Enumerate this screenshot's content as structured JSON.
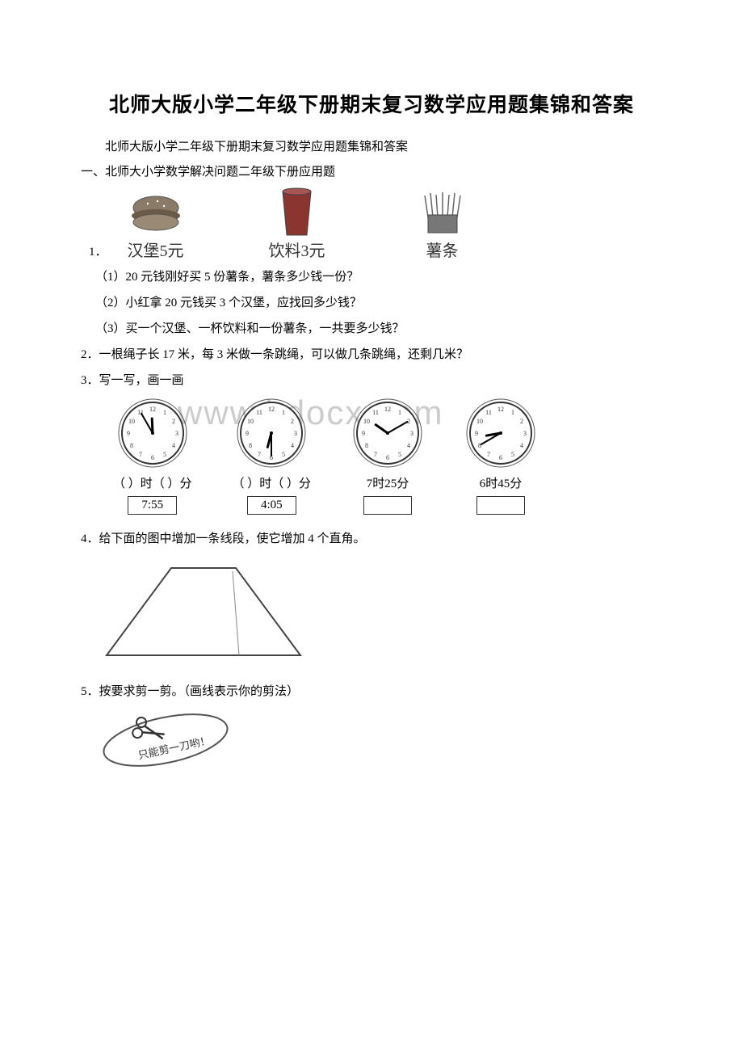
{
  "title": "北师大版小学二年级下册期末复习数学应用题集锦和答案",
  "subtitle": "北师大版小学二年级下册期末复习数学应用题集锦和答案",
  "section": "一、北师大小学数学解决问题二年级下册应用题",
  "q1": {
    "num": "1．",
    "items": [
      {
        "label": "汉堡5元"
      },
      {
        "label": "饮料3元"
      },
      {
        "label": "薯条"
      }
    ],
    "sub": [
      "（1）20 元钱刚好买 5 份薯条，薯条多少钱一份？",
      "（2）小红拿 20 元钱买 3 个汉堡，应找回多少钱？",
      "（3）买一个汉堡、一杯饮料和一份薯条，一共要多少钱？"
    ]
  },
  "q2": "2．一根绳子长 17 米，每 3 米做一条跳绳，可以做几条跳绳，还剩几米？",
  "q3": {
    "text": "3．写一写，画一画",
    "clocks": [
      {
        "label_l": "（   ）时（   ）分",
        "box": "7:55",
        "h": 11,
        "m": 55
      },
      {
        "label_l": "（   ）时（   ）分",
        "box": "4:05",
        "h": 6,
        "m": 30
      },
      {
        "label_l": "7时25分",
        "box": "",
        "h": 10,
        "m": 10
      },
      {
        "label_l": "6时45分",
        "box": "",
        "h": 8,
        "m": 40
      }
    ]
  },
  "watermark": "www.bdocx.com",
  "q4": "4．给下面的图中增加一条线段，使它增加 4 个直角。",
  "q5": {
    "text": "5．按要求剪一剪。（画线表示你的剪法）",
    "scissor_text": "只能剪一刀哟！"
  },
  "colors": {
    "text": "#000000",
    "watermark": "#cccccc",
    "line": "#444444"
  }
}
